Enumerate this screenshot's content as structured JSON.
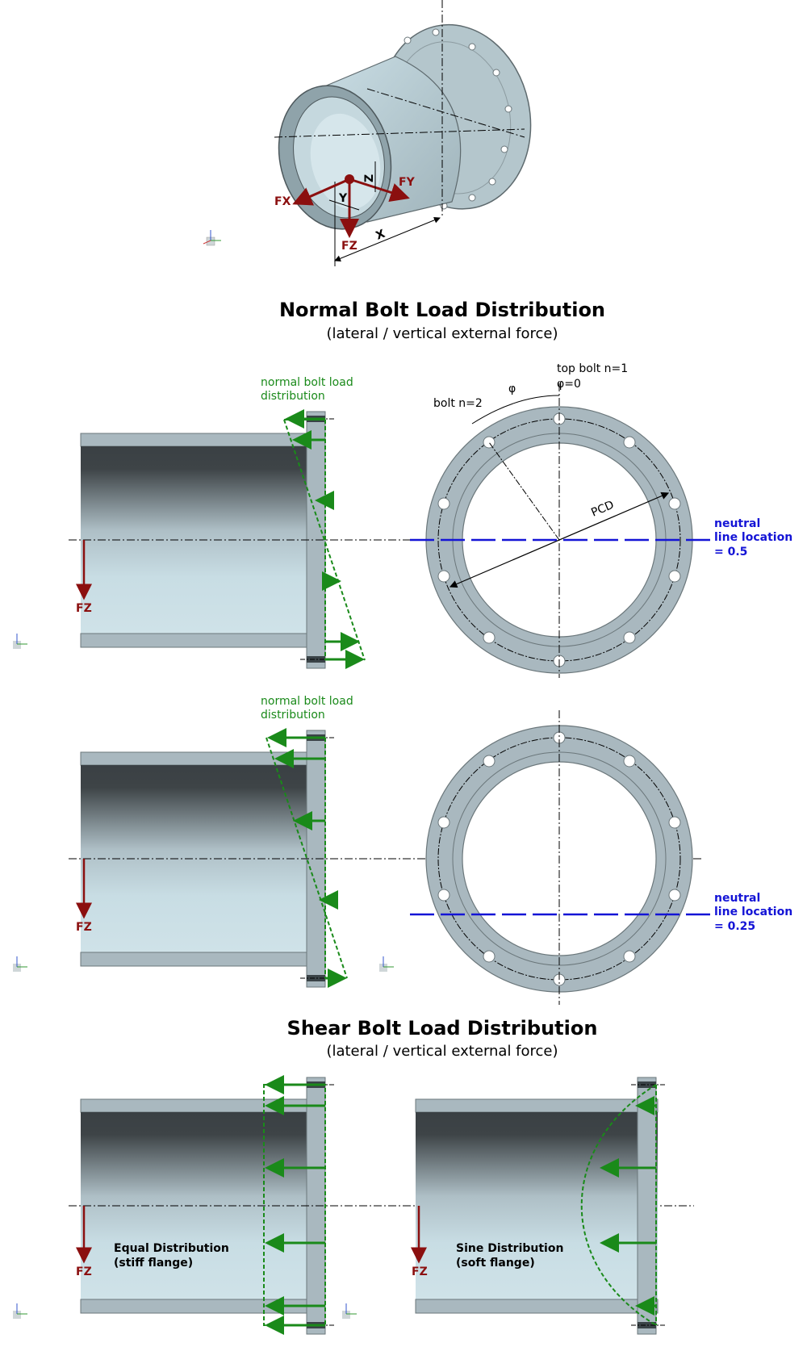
{
  "iso": {
    "fx": "FX",
    "fy": "FY",
    "fz": "FZ",
    "x": "X",
    "y": "Y",
    "z": "Z"
  },
  "normal": {
    "title": "Normal Bolt Load Distribution",
    "subtitle": "(lateral / vertical external force)",
    "dist_label_1": "normal bolt load",
    "dist_label_2": "distribution",
    "fz": "FZ",
    "top_bolt_1": "top bolt n=1",
    "top_bolt_2": "φ=0",
    "phi": "φ",
    "bolt2": "bolt n=2",
    "pcd": "PCD",
    "neutral_a_1": "neutral",
    "neutral_a_2": "line location",
    "neutral_a_3": "= 0.5",
    "neutral_b_1": "neutral",
    "neutral_b_2": "line location",
    "neutral_b_3": "= 0.25"
  },
  "shear": {
    "title": "Shear Bolt Load Distribution",
    "subtitle": "(lateral / vertical external force)",
    "fz": "FZ",
    "equal_1": "Equal Distribution",
    "equal_2": "(stiff flange)",
    "sine_1": "Sine Distribution",
    "sine_2": "(soft flange)"
  },
  "colors": {
    "load": "#1a8a1a",
    "neutral": "#1414d6",
    "force": "#8b0f0f",
    "steel": "#a9b8bf"
  }
}
